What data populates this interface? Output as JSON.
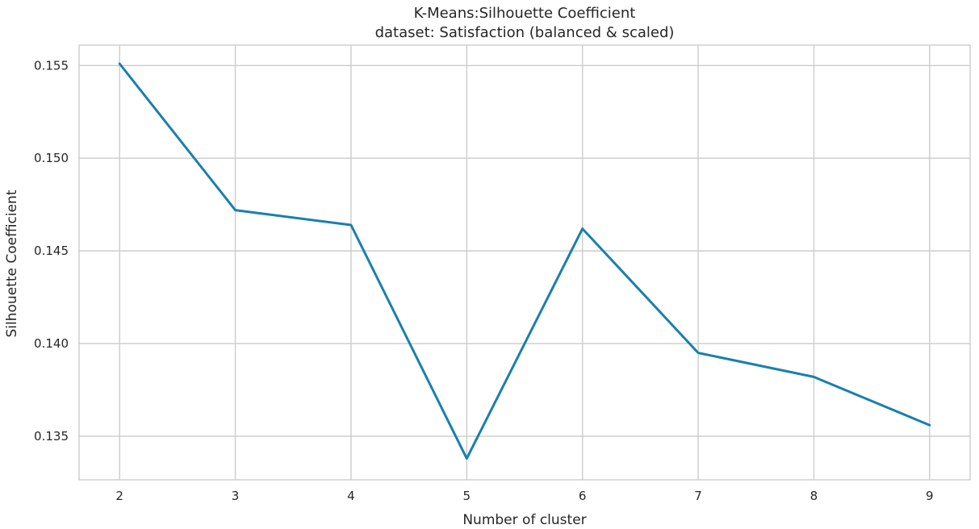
{
  "chart_data": {
    "type": "line",
    "title": "K-Means:Silhouette Coefficient",
    "subtitle": "dataset: Satisfaction (balanced & scaled)",
    "xlabel": "Number of cluster",
    "ylabel": "Silhouette Coefficient",
    "x": [
      2,
      3,
      4,
      5,
      6,
      7,
      8,
      9
    ],
    "series": [
      {
        "values": [
          0.1551,
          0.1472,
          0.1464,
          0.1338,
          0.1462,
          0.1395,
          0.1382,
          0.1356
        ]
      }
    ],
    "xticks": [
      2,
      3,
      4,
      5,
      6,
      7,
      8,
      9
    ],
    "xtick_labels": [
      "2",
      "3",
      "4",
      "5",
      "6",
      "7",
      "8",
      "9"
    ],
    "yticks": [
      0.135,
      0.14,
      0.145,
      0.15,
      0.155
    ],
    "ytick_labels": [
      "0.135",
      "0.140",
      "0.145",
      "0.150",
      "0.155"
    ],
    "xlim": [
      1.65,
      9.35
    ],
    "ylim": [
      0.13265,
      0.1561
    ],
    "grid": true,
    "line_color": "#1a7fae",
    "grid_color": "#cccccc"
  }
}
